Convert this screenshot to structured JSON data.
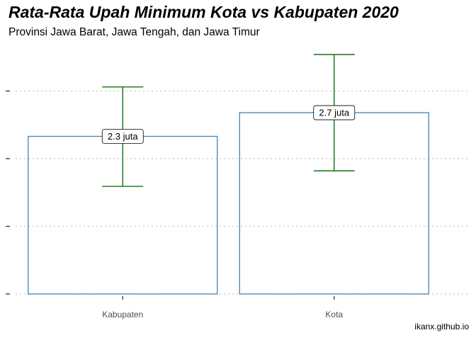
{
  "chart_data": {
    "type": "bar",
    "title": "Rata-Rata Upah Minimum Kota vs Kabupaten 2020",
    "subtitle": "Provinsi Jawa Barat, Jawa Tengah, dan Jawa Timur",
    "caption": "ikanx.github.io",
    "xlabel": "",
    "ylabel": "",
    "categories": [
      "Kabupaten",
      "Kota"
    ],
    "values": [
      2.33,
      2.68
    ],
    "labels": [
      "2.3 juta",
      "2.7 juta"
    ],
    "error_low": [
      1.59,
      1.82
    ],
    "error_high": [
      3.06,
      3.54
    ],
    "ylim": [
      0,
      3.6
    ],
    "yticks": [
      0,
      1,
      2,
      3
    ],
    "grid": true,
    "colors": {
      "bar_outline": "#4682b4",
      "error_bar": "#006400",
      "grid": "#c8c8c8"
    }
  }
}
